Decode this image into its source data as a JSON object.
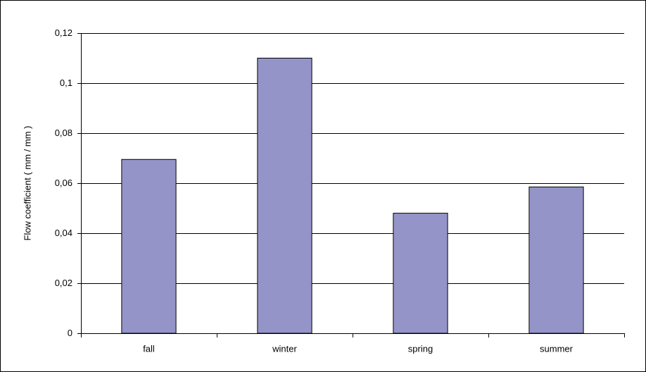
{
  "chart_data": {
    "type": "bar",
    "y_label": "Flow coefficient ( mm / mm )",
    "categories": [
      "fall",
      "winter",
      "spring",
      "summer"
    ],
    "values": [
      0.0695,
      0.11,
      0.048,
      0.0585
    ],
    "color": "#9494c9",
    "ylim": [
      0,
      0.12
    ],
    "yticks": [
      0,
      {
        "value": 0.02,
        "label": "0,02"
      },
      {
        "value": 0.04,
        "label": "0,04"
      },
      {
        "value": 0.06,
        "label": "0,06"
      },
      {
        "value": 0.08,
        "label": "0,08"
      },
      {
        "value": 0.1,
        "label": "0,1"
      },
      {
        "value": 0.12,
        "label": "0,12"
      }
    ],
    "grid": true
  }
}
